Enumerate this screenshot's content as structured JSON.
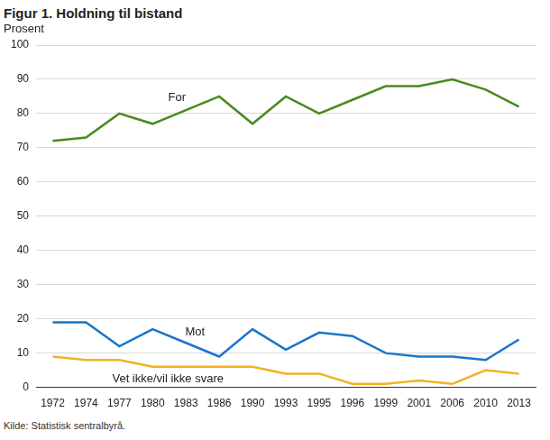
{
  "chart_data": {
    "type": "line",
    "title": "Figur 1. Holdning til bistand",
    "y_label": "Prosent",
    "source": "Kilde: Statistisk sentralbyrå.",
    "categories": [
      "1972",
      "1974",
      "1977",
      "1980",
      "1983",
      "1986",
      "1990",
      "1993",
      "1995",
      "1996",
      "1999",
      "2001",
      "2006",
      "2010",
      "2013"
    ],
    "series": [
      {
        "name": "For",
        "color": "#4a8a1d",
        "values": [
          72,
          73,
          80,
          77,
          81,
          85,
          77,
          85,
          80,
          84,
          88,
          88,
          90,
          87,
          82
        ]
      },
      {
        "name": "Mot",
        "color": "#1a75c9",
        "values": [
          19,
          19,
          12,
          17,
          13,
          9,
          17,
          11,
          16,
          15,
          10,
          9,
          9,
          8,
          14
        ]
      },
      {
        "name": "Vet ikke/vil ikke svare",
        "color": "#f0b323",
        "values": [
          9,
          8,
          8,
          6,
          6,
          6,
          6,
          4,
          4,
          1,
          1,
          2,
          1,
          5,
          4
        ]
      }
    ],
    "ylim": [
      0,
      100
    ],
    "yticks": [
      0,
      10,
      20,
      30,
      40,
      50,
      60,
      70,
      80,
      90,
      100
    ],
    "grid": true
  }
}
